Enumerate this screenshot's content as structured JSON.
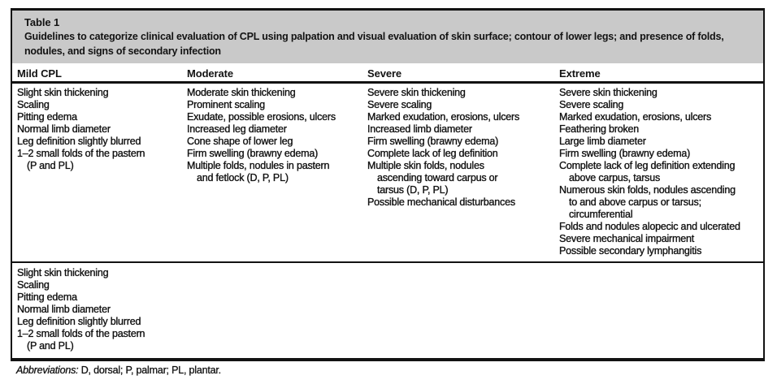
{
  "table": {
    "label": "Table 1",
    "caption": "Guidelines to categorize clinical evaluation of CPL using palpation and visual evaluation of skin surface; contour of lower legs; and presence of folds, nodules, and signs of secondary infection",
    "headers": [
      "Mild CPL",
      "Moderate",
      "Severe",
      "Extreme"
    ],
    "sections": [
      {
        "columns": [
          {
            "lines": [
              {
                "t": "Slight skin thickening",
                "i": false
              },
              {
                "t": "Scaling",
                "i": false
              },
              {
                "t": "Pitting edema",
                "i": false
              },
              {
                "t": "Normal limb diameter",
                "i": false
              },
              {
                "t": "Leg definition slightly blurred",
                "i": false
              },
              {
                "t": "1–2 small folds of the pastern",
                "i": false
              },
              {
                "t": "(P and PL)",
                "i": true
              }
            ]
          },
          {
            "lines": [
              {
                "t": "Moderate skin thickening",
                "i": false
              },
              {
                "t": "Prominent scaling",
                "i": false
              },
              {
                "t": "Exudate, possible erosions, ulcers",
                "i": false
              },
              {
                "t": "Increased leg diameter",
                "i": false
              },
              {
                "t": "Cone shape of lower leg",
                "i": false
              },
              {
                "t": "Firm swelling (brawny edema)",
                "i": false
              },
              {
                "t": "Multiple folds, nodules in pastern",
                "i": false
              },
              {
                "t": "and fetlock (D, P, PL)",
                "i": true
              }
            ]
          },
          {
            "lines": [
              {
                "t": "Severe skin thickening",
                "i": false
              },
              {
                "t": "Severe scaling",
                "i": false
              },
              {
                "t": "Marked exudation, erosions, ulcers",
                "i": false
              },
              {
                "t": "Increased limb diameter",
                "i": false
              },
              {
                "t": "Firm swelling (brawny edema)",
                "i": false
              },
              {
                "t": "Complete lack of leg definition",
                "i": false
              },
              {
                "t": "Multiple skin folds, nodules",
                "i": false
              },
              {
                "t": "ascending toward carpus or",
                "i": true
              },
              {
                "t": "tarsus (D, P, PL)",
                "i": true
              },
              {
                "t": "Possible mechanical disturbances",
                "i": false
              }
            ]
          },
          {
            "lines": [
              {
                "t": "Severe skin thickening",
                "i": false
              },
              {
                "t": "Severe scaling",
                "i": false
              },
              {
                "t": "Marked exudation, erosions, ulcers",
                "i": false
              },
              {
                "t": "Feathering broken",
                "i": false
              },
              {
                "t": "Large limb diameter",
                "i": false
              },
              {
                "t": "Firm swelling (brawny edema)",
                "i": false
              },
              {
                "t": "Complete lack of leg definition extending",
                "i": false
              },
              {
                "t": "above carpus, tarsus",
                "i": true
              },
              {
                "t": "Numerous skin folds, nodules ascending",
                "i": false
              },
              {
                "t": "to and above carpus or tarsus;",
                "i": true
              },
              {
                "t": "circumferential",
                "i": true
              },
              {
                "t": "Folds and nodules alopecic and ulcerated",
                "i": false
              },
              {
                "t": "Severe mechanical impairment",
                "i": false
              },
              {
                "t": "Possible secondary lymphangitis",
                "i": false
              }
            ]
          }
        ]
      },
      {
        "columns": [
          {
            "lines": [
              {
                "t": "Slight skin thickening",
                "i": false
              },
              {
                "t": "Scaling",
                "i": false
              },
              {
                "t": "Pitting edema",
                "i": false
              },
              {
                "t": "Normal limb diameter",
                "i": false
              },
              {
                "t": "Leg definition slightly blurred",
                "i": false
              },
              {
                "t": "1–2 small folds of the pastern",
                "i": false
              },
              {
                "t": "(P and PL)",
                "i": true
              }
            ]
          },
          {
            "lines": []
          },
          {
            "lines": []
          },
          {
            "lines": []
          }
        ]
      }
    ],
    "footnote": {
      "label": "Abbreviations:",
      "text": "D, dorsal; P, palmar; PL, plantar."
    }
  },
  "colors": {
    "band_bg": "#c9c9c9",
    "text": "#121212"
  }
}
